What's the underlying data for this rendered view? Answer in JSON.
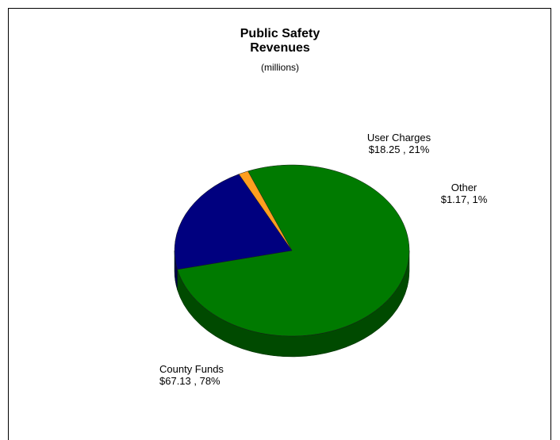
{
  "chart_data": {
    "type": "pie",
    "title_line1": "Public Safety",
    "title_line2": "Revenues",
    "subtitle": "(millions)",
    "slices": [
      {
        "name": "County Funds",
        "value": 67.13,
        "percent": 78,
        "value_label": "$67.13 , 78%",
        "color": "#007a00",
        "side_color": "#004a00"
      },
      {
        "name": "User Charges",
        "value": 18.25,
        "percent": 21,
        "value_label": "$18.25 , 21%",
        "color": "#00007f",
        "side_color": "#00004a"
      },
      {
        "name": "Other",
        "value": 1.17,
        "percent": 1,
        "value_label": "$1.17, 1%",
        "color": "#ff9e1f",
        "side_color": "#b86a00"
      }
    ],
    "style": "3d"
  }
}
